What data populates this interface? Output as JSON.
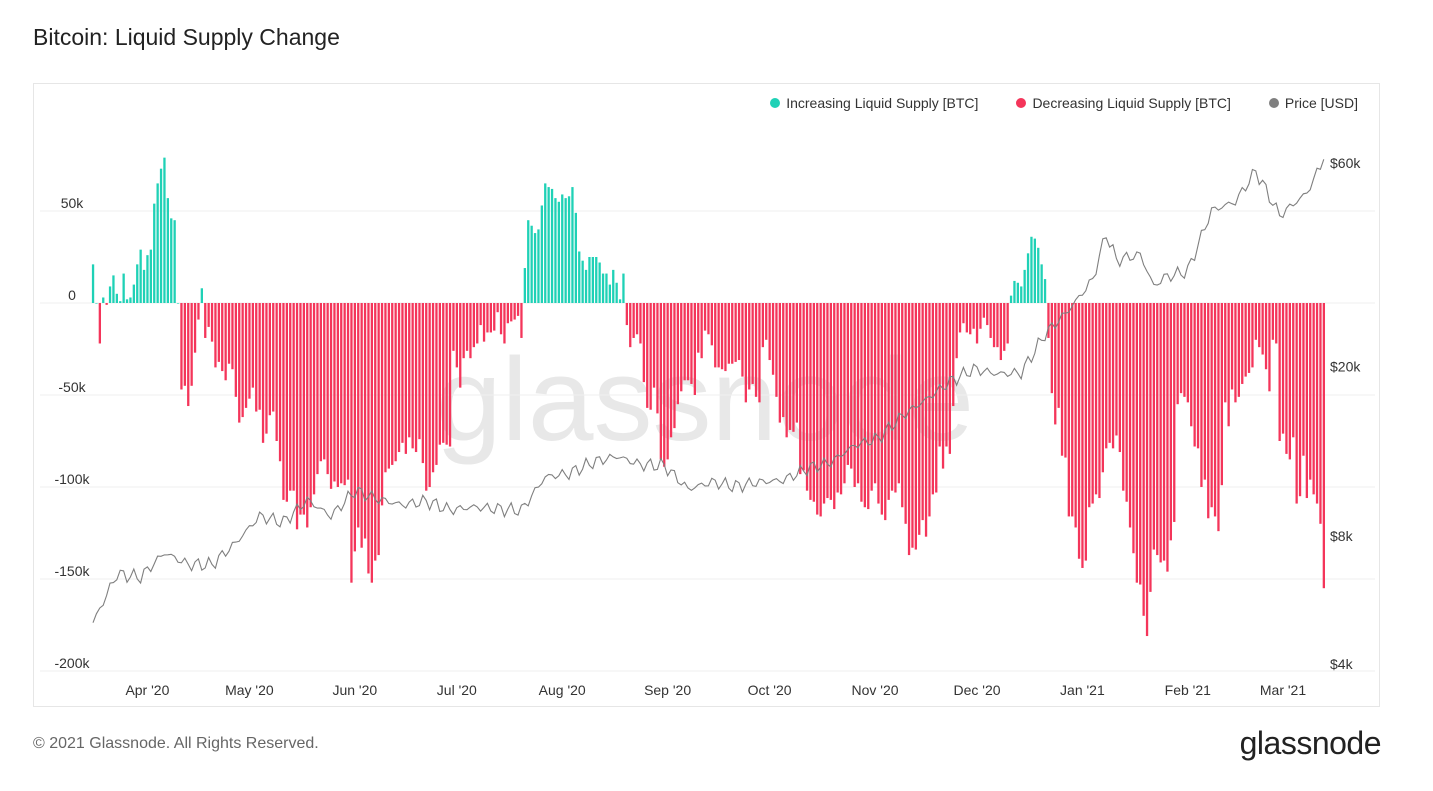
{
  "title": "Bitcoin: Liquid Supply Change",
  "footer": "© 2021 Glassnode. All Rights Reserved.",
  "logo": "glassnode",
  "watermark": "glassnode",
  "legend": [
    {
      "label": "Increasing Liquid Supply [BTC]",
      "color": "#1fd1b6"
    },
    {
      "label": "Decreasing Liquid Supply [BTC]",
      "color": "#f4355a"
    },
    {
      "label": "Price [USD]",
      "color": "#7f7f7f"
    }
  ],
  "chart_data": {
    "type": "bar",
    "title": "Bitcoin: Liquid Supply Change",
    "legend_position": "top-right",
    "grid": true,
    "x_ticks": [
      {
        "date": "2020-04-01",
        "label": "Apr '20"
      },
      {
        "date": "2020-05-01",
        "label": "May '20"
      },
      {
        "date": "2020-06-01",
        "label": "Jun '20"
      },
      {
        "date": "2020-07-01",
        "label": "Jul '20"
      },
      {
        "date": "2020-08-01",
        "label": "Aug '20"
      },
      {
        "date": "2020-09-01",
        "label": "Sep '20"
      },
      {
        "date": "2020-10-01",
        "label": "Oct '20"
      },
      {
        "date": "2020-11-01",
        "label": "Nov '20"
      },
      {
        "date": "2020-12-01",
        "label": "Dec '20"
      },
      {
        "date": "2021-01-01",
        "label": "Jan '21"
      },
      {
        "date": "2021-02-01",
        "label": "Feb '21"
      },
      {
        "date": "2021-03-01",
        "label": "Mar '21"
      }
    ],
    "y_left": {
      "range": [
        -200000,
        70000
      ],
      "ticks": [
        {
          "value": 50000,
          "label": "50k"
        },
        {
          "value": 0,
          "label": "0"
        },
        {
          "value": -50000,
          "label": "-50k"
        },
        {
          "value": -100000,
          "label": "-100k"
        },
        {
          "value": -150000,
          "label": "-150k"
        },
        {
          "value": -200000,
          "label": "-200k"
        }
      ]
    },
    "y_right": {
      "scale": "log",
      "range": [
        4000,
        65000
      ],
      "ticks": [
        {
          "value": 60000,
          "label": "$60k"
        },
        {
          "value": 20000,
          "label": "$20k"
        },
        {
          "value": 8000,
          "label": "$8k"
        },
        {
          "value": 4000,
          "label": "$4k"
        }
      ]
    },
    "liquid_supply_change_daily": [
      {
        "month": "2020-03",
        "first_day": 16,
        "values": [
          21000,
          0,
          -22000,
          3000,
          -1000,
          9000,
          15000,
          5000,
          1000,
          16000,
          2000,
          3000,
          10000,
          21000,
          29000,
          18000
        ]
      },
      {
        "month": "2020-04",
        "first_day": 1,
        "values": [
          26000,
          29000,
          54000,
          65000,
          73000,
          79000,
          57000,
          46000,
          45000,
          0,
          -47000,
          -45000,
          -56000,
          -45000,
          -27000,
          -9000,
          8000,
          -19000,
          -13000,
          -21000,
          -35000,
          -32000,
          -37000,
          -42000,
          -33000,
          -36000,
          -51000,
          -65000,
          -62000,
          -57000
        ]
      },
      {
        "month": "2020-05",
        "first_day": 1,
        "values": [
          -52000,
          -46000,
          -59000,
          -58000,
          -76000,
          -71000,
          -61000,
          -59000,
          -75000,
          -86000,
          -107000,
          -108000,
          -102000,
          -102000,
          -123000,
          -115000,
          -115000,
          -122000,
          -111000,
          -104000,
          -93000,
          -86000,
          -85000,
          -93000,
          -101000,
          -97000,
          -100000,
          -98000,
          -99000,
          -96000,
          -152000
        ]
      },
      {
        "month": "2020-06",
        "first_day": 1,
        "values": [
          -135000,
          -122000,
          -133000,
          -128000,
          -147000,
          -152000,
          -140000,
          -137000,
          -110000,
          -92000,
          -90000,
          -88000,
          -86000,
          -81000,
          -76000,
          -82000,
          -73000,
          -79000,
          -81000,
          -74000,
          -87000,
          -102000,
          -100000,
          -92000,
          -88000,
          -77000,
          -76000,
          -77000,
          -78000,
          -26000
        ]
      },
      {
        "month": "2020-07",
        "first_day": 1,
        "values": [
          -35000,
          -46000,
          -30000,
          -26000,
          -30000,
          -24000,
          -22000,
          -12000,
          -21000,
          -16000,
          -16000,
          -15000,
          -5000,
          -17000,
          -22000,
          -11000,
          -10000,
          -9000,
          -7000,
          -19000,
          19000,
          45000,
          42000,
          38000,
          40000,
          53000,
          65000,
          63000,
          62000,
          57000,
          55000
        ]
      },
      {
        "month": "2020-08",
        "first_day": 1,
        "values": [
          59000,
          57000,
          58000,
          63000,
          49000,
          28000,
          23000,
          18000,
          25000,
          25000,
          25000,
          22000,
          16000,
          16000,
          10000,
          18000,
          11000,
          2000,
          16000,
          -12000,
          -24000,
          -19000,
          -17000,
          -22000,
          -43000,
          -57000,
          -58000,
          -46000,
          -60000,
          -85000,
          -89000
        ]
      },
      {
        "month": "2020-09",
        "first_day": 1,
        "values": [
          -85000,
          -73000,
          -68000,
          -55000,
          -48000,
          -42000,
          -42000,
          -44000,
          -50000,
          -27000,
          -30000,
          -15000,
          -17000,
          -23000,
          -35000,
          -35000,
          -36000,
          -37000,
          -33000,
          -33000,
          -32000,
          -31000,
          -40000,
          -54000,
          -47000,
          -44000,
          -51000,
          -54000,
          -24000,
          -20000
        ]
      },
      {
        "month": "2020-10",
        "first_day": 1,
        "values": [
          -31000,
          -39000,
          -51000,
          -65000,
          -62000,
          -73000,
          -69000,
          -70000,
          -65000,
          -93000,
          -91000,
          -102000,
          -107000,
          -108000,
          -115000,
          -116000,
          -109000,
          -106000,
          -107000,
          -112000,
          -103000,
          -104000,
          -98000,
          -88000,
          -90000,
          -100000,
          -98000,
          -108000,
          -111000,
          -112000,
          -102000
        ]
      },
      {
        "month": "2020-11",
        "first_day": 1,
        "values": [
          -98000,
          -109000,
          -115000,
          -118000,
          -107000,
          -102000,
          -103000,
          -98000,
          -111000,
          -120000,
          -137000,
          -133000,
          -134000,
          -126000,
          -118000,
          -127000,
          -116000,
          -104000,
          -103000,
          -78000,
          -90000,
          -78000,
          -82000,
          -56000,
          -30000,
          -16000,
          -11000,
          -16000,
          -17000,
          -14000
        ]
      },
      {
        "month": "2020-12",
        "first_day": 1,
        "values": [
          -22000,
          -14000,
          -8000,
          -12000,
          -19000,
          -24000,
          -24000,
          -31000,
          -26000,
          -22000,
          4000,
          12000,
          11000,
          9000,
          18000,
          27000,
          36000,
          35000,
          30000,
          21000,
          13000,
          -19000,
          -49000,
          -66000,
          -57000,
          -83000,
          -84000,
          -116000,
          -116000,
          -122000,
          -139000
        ]
      },
      {
        "month": "2021-01",
        "first_day": 1,
        "values": [
          -144000,
          -140000,
          -111000,
          -109000,
          -104000,
          -106000,
          -92000,
          -79000,
          -76000,
          -79000,
          -72000,
          -81000,
          -102000,
          -108000,
          -122000,
          -136000,
          -152000,
          -153000,
          -170000,
          -181000,
          -157000,
          -134000,
          -137000,
          -141000,
          -140000,
          -146000,
          -129000,
          -119000,
          -55000,
          -49000,
          -51000
        ]
      },
      {
        "month": "2021-02",
        "first_day": 1,
        "values": [
          -54000,
          -67000,
          -78000,
          -79000,
          -100000,
          -96000,
          -117000,
          -111000,
          -116000,
          -124000,
          -99000,
          -54000,
          -67000,
          -47000,
          -54000,
          -51000,
          -44000,
          -40000,
          -38000,
          -35000,
          -20000,
          -24000,
          -28000,
          -36000,
          -48000,
          -20000,
          -22000,
          -75000
        ]
      },
      {
        "month": "2021-03",
        "first_day": 1,
        "values": [
          -71000,
          -82000,
          -85000,
          -73000,
          -109000,
          -105000,
          -83000,
          -106000,
          -96000,
          -104000,
          -109000,
          -120000,
          -155000
        ]
      }
    ],
    "price_usd": [
      [
        "2020-03-16",
        5000
      ],
      [
        "2020-03-23",
        6500
      ],
      [
        "2020-03-30",
        6400
      ],
      [
        "2020-04-06",
        7300
      ],
      [
        "2020-04-13",
        6850
      ],
      [
        "2020-04-20",
        6850
      ],
      [
        "2020-04-27",
        7700
      ],
      [
        "2020-05-04",
        8900
      ],
      [
        "2020-05-11",
        8600
      ],
      [
        "2020-05-18",
        9700
      ],
      [
        "2020-05-25",
        8900
      ],
      [
        "2020-06-01",
        10200
      ],
      [
        "2020-06-08",
        9750
      ],
      [
        "2020-06-15",
        9450
      ],
      [
        "2020-06-22",
        9650
      ],
      [
        "2020-06-29",
        9200
      ],
      [
        "2020-07-06",
        9350
      ],
      [
        "2020-07-13",
        9250
      ],
      [
        "2020-07-20",
        9180
      ],
      [
        "2020-07-27",
        11000
      ],
      [
        "2020-08-03",
        11200
      ],
      [
        "2020-08-10",
        11900
      ],
      [
        "2020-08-17",
        12300
      ],
      [
        "2020-08-24",
        11750
      ],
      [
        "2020-08-31",
        11700
      ],
      [
        "2020-09-07",
        10300
      ],
      [
        "2020-09-14",
        10700
      ],
      [
        "2020-09-21",
        10450
      ],
      [
        "2020-09-28",
        10700
      ],
      [
        "2020-10-05",
        10800
      ],
      [
        "2020-10-12",
        11500
      ],
      [
        "2020-10-19",
        11900
      ],
      [
        "2020-10-26",
        13050
      ],
      [
        "2020-11-02",
        13550
      ],
      [
        "2020-11-09",
        15300
      ],
      [
        "2020-11-16",
        16700
      ],
      [
        "2020-11-23",
        18400
      ],
      [
        "2020-11-30",
        19700
      ],
      [
        "2020-12-07",
        19200
      ],
      [
        "2020-12-14",
        19300
      ],
      [
        "2020-12-21",
        23800
      ],
      [
        "2020-12-28",
        27100
      ],
      [
        "2021-01-04",
        31900
      ],
      [
        "2021-01-08",
        41000
      ],
      [
        "2021-01-11",
        35500
      ],
      [
        "2021-01-18",
        36600
      ],
      [
        "2021-01-22",
        30800
      ],
      [
        "2021-01-25",
        32300
      ],
      [
        "2021-02-01",
        33500
      ],
      [
        "2021-02-08",
        46400
      ],
      [
        "2021-02-15",
        48700
      ],
      [
        "2021-02-21",
        57500
      ],
      [
        "2021-02-28",
        45200
      ],
      [
        "2021-03-08",
        51000
      ],
      [
        "2021-03-13",
        61200
      ]
    ]
  }
}
